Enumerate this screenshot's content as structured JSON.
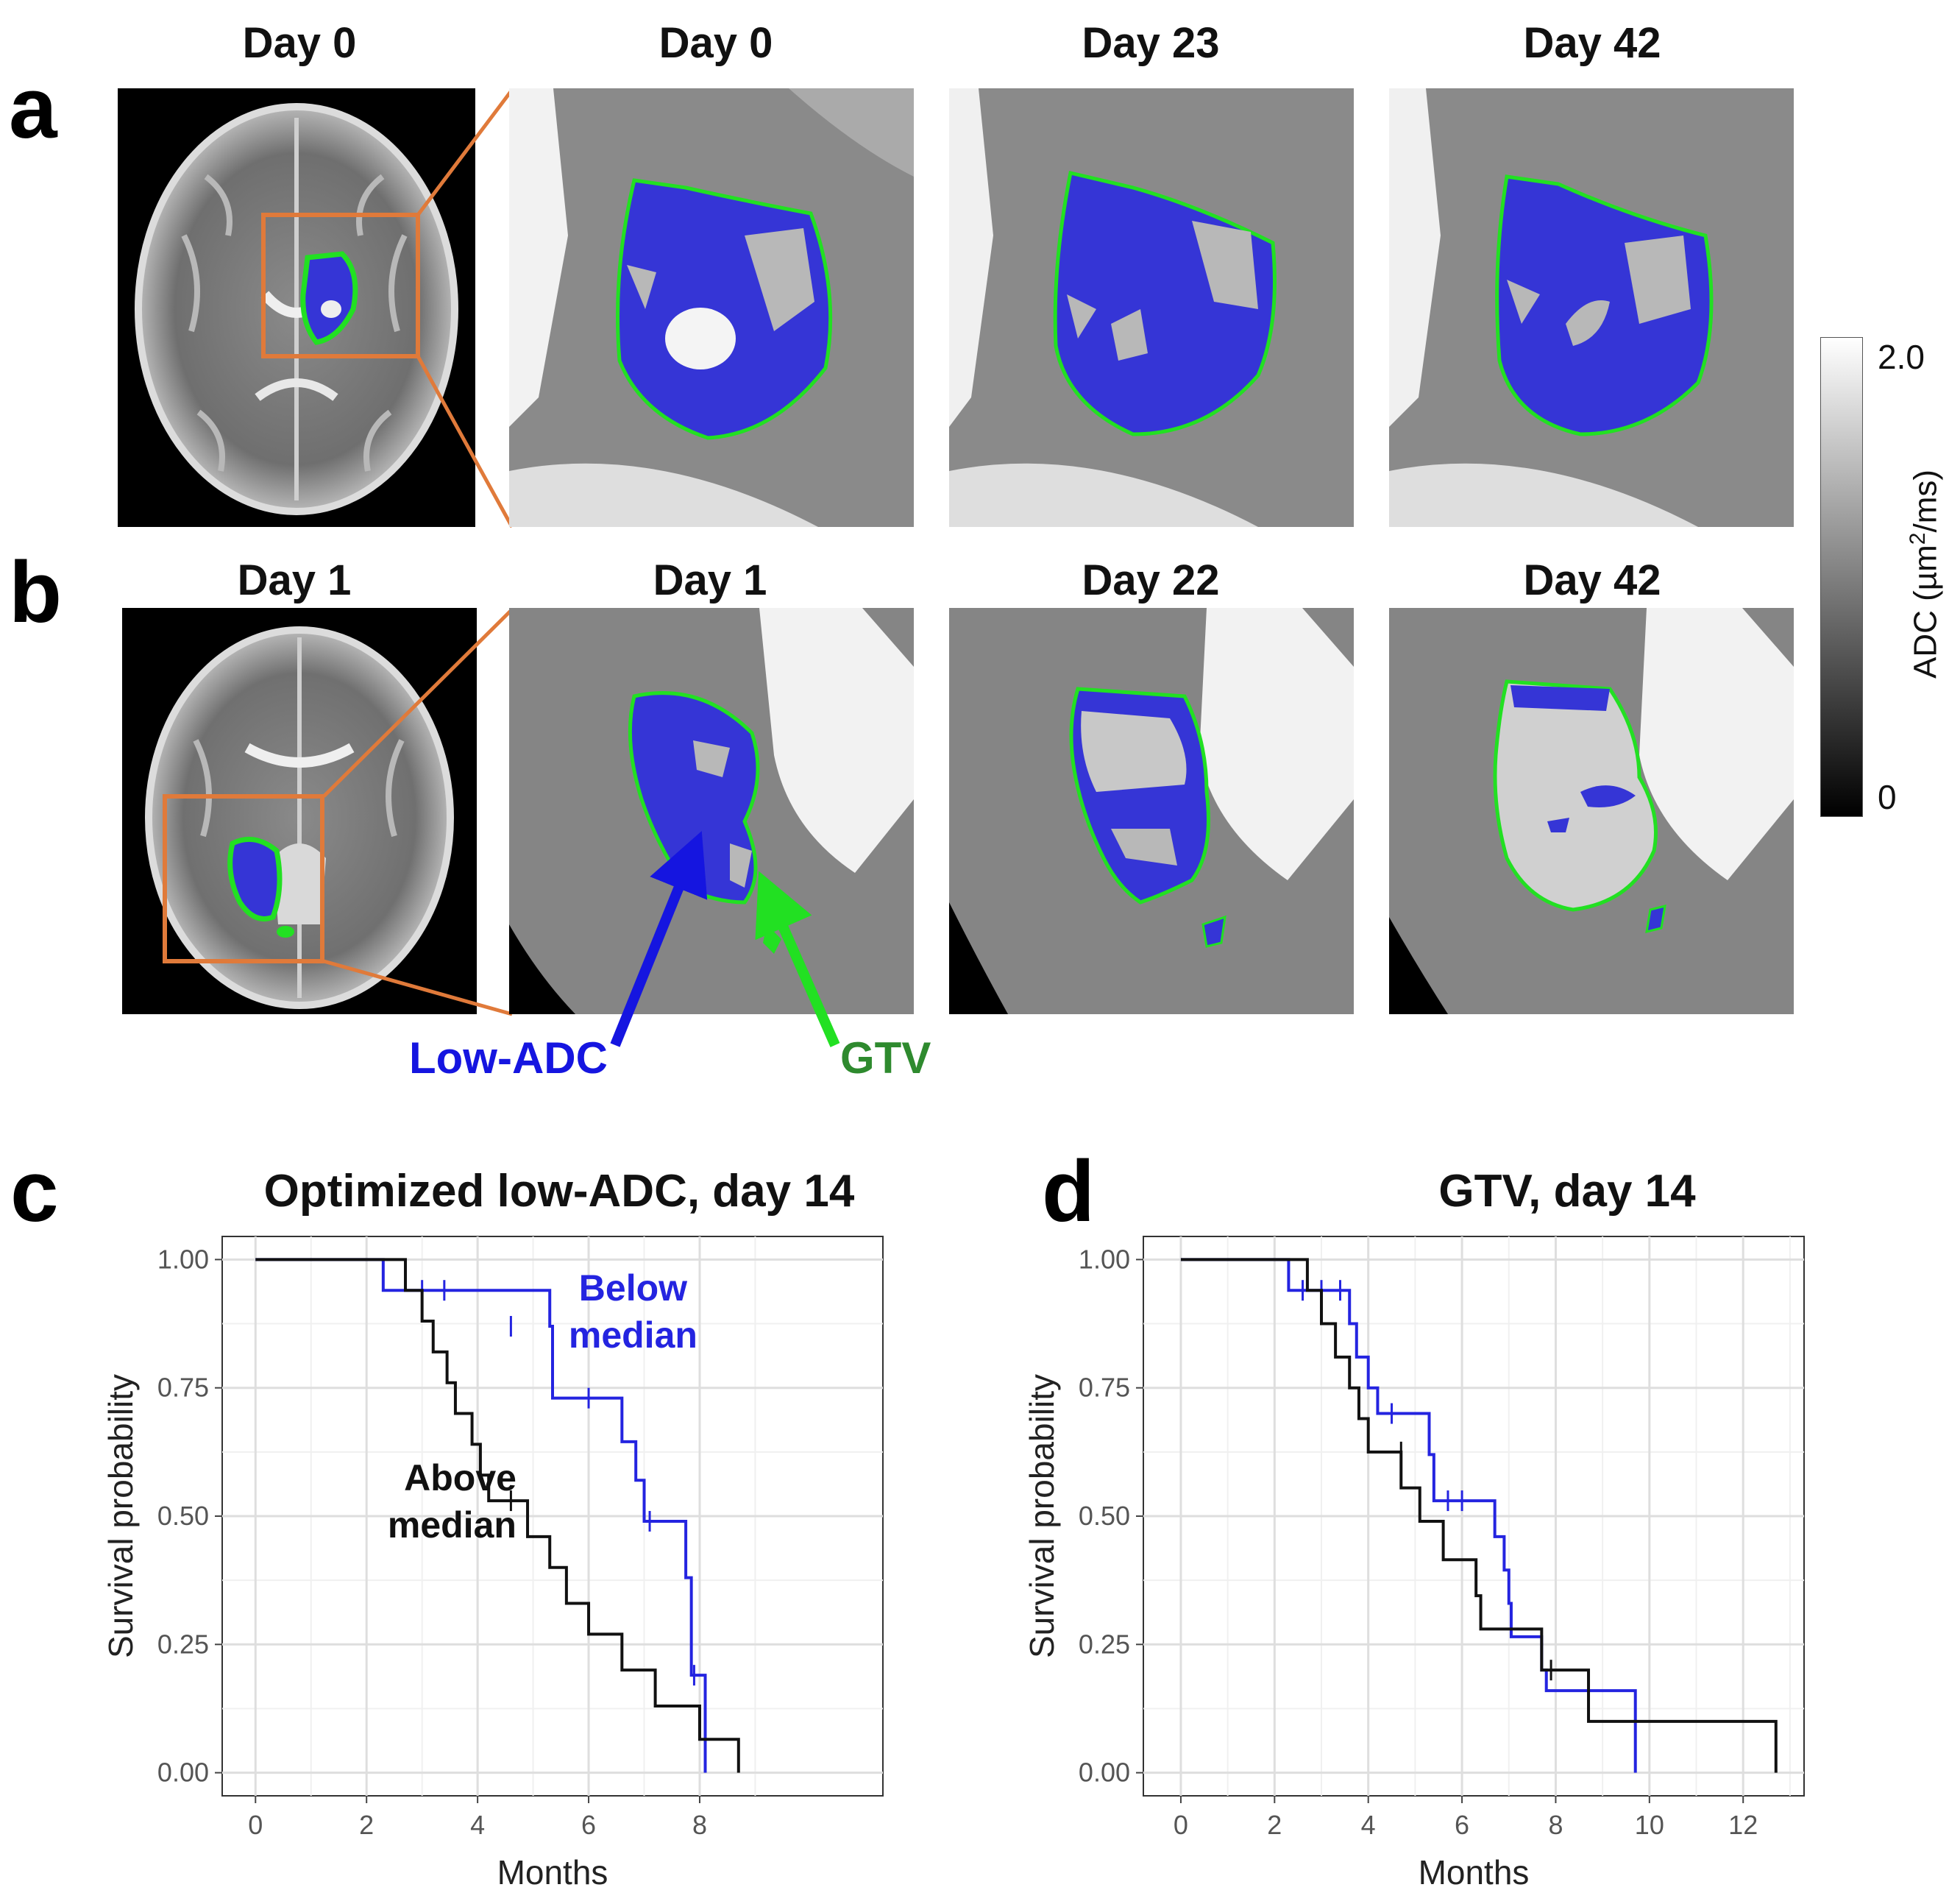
{
  "panels": {
    "a": {
      "letter": "a",
      "labels": [
        "Day 0",
        "Day 0",
        "Day 23",
        "Day 42"
      ]
    },
    "b": {
      "letter": "b",
      "labels": [
        "Day 1",
        "Day 1",
        "Day 22",
        "Day 42"
      ],
      "annotations": {
        "low_adc": "Low-ADC",
        "gtv": "GTV"
      }
    },
    "c": {
      "letter": "c",
      "title": "Optimized low-ADC, day 14"
    },
    "d": {
      "letter": "d",
      "title": "GTV, day 14"
    }
  },
  "colorbar": {
    "title_prefix": "ADC (µm",
    "title_sup": "2",
    "title_suffix": "/ms)",
    "max_label": "2.0",
    "min_label": "0"
  },
  "colors": {
    "low_adc": "#3535d6",
    "gtv": "#22e022",
    "box": "#e07a3a",
    "below_median": "#2424e0",
    "above_median": "#111111"
  },
  "chart_data": [
    {
      "type": "line",
      "panel": "c",
      "title": "Optimized low-ADC, day 14",
      "xlabel": "Months",
      "ylabel": "Survival probability",
      "xlim": [
        -0.6,
        11.3
      ],
      "ylim": [
        -0.045,
        1.045
      ],
      "x_ticks": [
        0,
        2,
        4,
        6,
        8
      ],
      "y_ticks": [
        0.0,
        0.25,
        0.5,
        0.75,
        1.0
      ],
      "y_tick_labels": [
        "0.00",
        "0.25",
        "0.50",
        "0.75",
        "1.00"
      ],
      "grid": true,
      "series": [
        {
          "name": "Below median",
          "label_lines": [
            "Below",
            "median"
          ],
          "color": "#2424e0",
          "steps": [
            [
              0,
              1.0
            ],
            [
              2.3,
              0.94
            ],
            [
              5.3,
              0.87
            ],
            [
              5.35,
              0.73
            ],
            [
              6.6,
              0.645
            ],
            [
              6.85,
              0.57
            ],
            [
              7.0,
              0.49
            ],
            [
              7.75,
              0.38
            ],
            [
              7.85,
              0.19
            ],
            [
              8.1,
              0.0
            ]
          ],
          "end": 8.1,
          "censors": [
            [
              3.0,
              0.94
            ],
            [
              3.4,
              0.94
            ],
            [
              4.6,
              0.87
            ],
            [
              6.0,
              0.73
            ],
            [
              7.1,
              0.49
            ],
            [
              7.9,
              0.19
            ]
          ]
        },
        {
          "name": "Above median",
          "label_lines": [
            "Above",
            "median"
          ],
          "color": "#111111",
          "steps": [
            [
              0,
              1.0
            ],
            [
              2.7,
              0.94
            ],
            [
              3.0,
              0.88
            ],
            [
              3.2,
              0.82
            ],
            [
              3.45,
              0.76
            ],
            [
              3.6,
              0.7
            ],
            [
              3.9,
              0.64
            ],
            [
              4.05,
              0.58
            ],
            [
              4.2,
              0.53
            ],
            [
              4.9,
              0.46
            ],
            [
              5.3,
              0.4
            ],
            [
              5.6,
              0.33
            ],
            [
              6.0,
              0.27
            ],
            [
              6.6,
              0.2
            ],
            [
              7.2,
              0.13
            ],
            [
              8.0,
              0.065
            ],
            [
              8.7,
              0.0
            ]
          ],
          "end": 8.7,
          "censors": [
            [
              4.6,
              0.53
            ]
          ]
        }
      ]
    },
    {
      "type": "line",
      "panel": "d",
      "title": "GTV, day 14",
      "xlabel": "Months",
      "ylabel": "Survival probability",
      "xlim": [
        -0.8,
        13.3
      ],
      "ylim": [
        -0.045,
        1.045
      ],
      "x_ticks": [
        0,
        2,
        4,
        6,
        8,
        10,
        12
      ],
      "y_ticks": [
        0.0,
        0.25,
        0.5,
        0.75,
        1.0
      ],
      "y_tick_labels": [
        "0.00",
        "0.25",
        "0.50",
        "0.75",
        "1.00"
      ],
      "grid": true,
      "series": [
        {
          "color": "#2424e0",
          "steps": [
            [
              0,
              1.0
            ],
            [
              2.3,
              0.94
            ],
            [
              3.6,
              0.875
            ],
            [
              3.75,
              0.81
            ],
            [
              4.0,
              0.75
            ],
            [
              4.2,
              0.7
            ],
            [
              5.3,
              0.62
            ],
            [
              5.4,
              0.53
            ],
            [
              6.7,
              0.46
            ],
            [
              6.9,
              0.395
            ],
            [
              7.0,
              0.33
            ],
            [
              7.05,
              0.265
            ],
            [
              7.7,
              0.2
            ],
            [
              7.8,
              0.16
            ],
            [
              9.7,
              0.0
            ]
          ],
          "end": 9.7,
          "censors": [
            [
              2.6,
              0.94
            ],
            [
              3.0,
              0.94
            ],
            [
              3.4,
              0.94
            ],
            [
              4.5,
              0.7
            ],
            [
              5.7,
              0.53
            ],
            [
              6.0,
              0.53
            ]
          ]
        },
        {
          "color": "#111111",
          "steps": [
            [
              0,
              1.0
            ],
            [
              2.7,
              0.94
            ],
            [
              3.0,
              0.875
            ],
            [
              3.3,
              0.81
            ],
            [
              3.6,
              0.75
            ],
            [
              3.8,
              0.69
            ],
            [
              4.0,
              0.625
            ],
            [
              4.7,
              0.555
            ],
            [
              5.1,
              0.49
            ],
            [
              5.6,
              0.415
            ],
            [
              6.3,
              0.345
            ],
            [
              6.4,
              0.28
            ],
            [
              7.7,
              0.2
            ],
            [
              8.7,
              0.1
            ],
            [
              12.7,
              0.0
            ]
          ],
          "end": 12.7,
          "censors": [
            [
              4.7,
              0.625
            ],
            [
              7.9,
              0.2
            ]
          ]
        }
      ]
    }
  ]
}
